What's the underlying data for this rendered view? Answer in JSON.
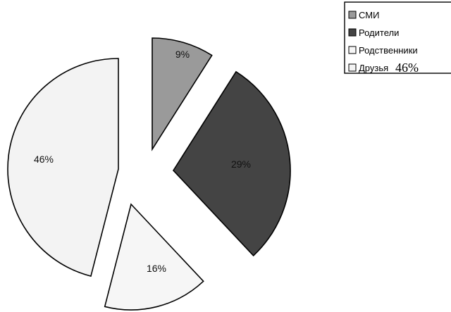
{
  "chart_data": {
    "type": "pie",
    "title": "",
    "slices": [
      {
        "name": "СМИ",
        "value": 9,
        "label": "9%",
        "color": "#9a9a9a"
      },
      {
        "name": "Родители",
        "value": 29,
        "label": "29%",
        "color": "#444444"
      },
      {
        "name": "Родственники",
        "value": 16,
        "label": "16%",
        "color": "#f6f6f6"
      },
      {
        "name": "Друзья",
        "value": 46,
        "label": "46%",
        "color": "#f3f3f3"
      }
    ],
    "exploded": true,
    "legend": {
      "placement": "top-right",
      "items": [
        {
          "text": "СМИ",
          "suffix": ""
        },
        {
          "text": "Родители",
          "suffix": ""
        },
        {
          "text": "Родственники",
          "suffix": ""
        },
        {
          "text": "Друзья",
          "suffix": "46%"
        }
      ]
    }
  }
}
